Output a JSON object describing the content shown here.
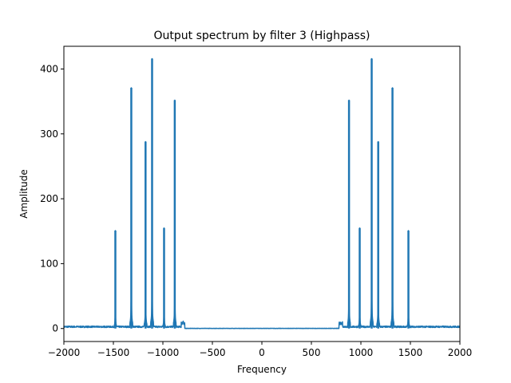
{
  "chart_data": {
    "type": "line",
    "title": "Output spectrum by filter 3 (Highpass)",
    "xlabel": "Frequency",
    "ylabel": "Amplitude",
    "xlim": [
      -2000,
      2000
    ],
    "ylim": [
      -20,
      435
    ],
    "xticks": [
      -2000,
      -1500,
      -1000,
      -500,
      0,
      500,
      1000,
      1500,
      2000
    ],
    "yticks": [
      0,
      100,
      200,
      300,
      400
    ],
    "grid": false,
    "series": [
      {
        "color": "#1f77b4",
        "noise_floor": 1.5,
        "passband": [
          [
            -2000,
            -780
          ],
          [
            780,
            2000
          ]
        ],
        "peaks": [
          {
            "x": -1480,
            "y": 151
          },
          {
            "x": -1319,
            "y": 371
          },
          {
            "x": -1175,
            "y": 288
          },
          {
            "x": -1109,
            "y": 416
          },
          {
            "x": -988,
            "y": 155
          },
          {
            "x": -880,
            "y": 352
          },
          {
            "x": 880,
            "y": 352
          },
          {
            "x": 988,
            "y": 155
          },
          {
            "x": 1109,
            "y": 416
          },
          {
            "x": 1175,
            "y": 288
          },
          {
            "x": 1319,
            "y": 371
          },
          {
            "x": 1480,
            "y": 151
          }
        ]
      }
    ]
  }
}
